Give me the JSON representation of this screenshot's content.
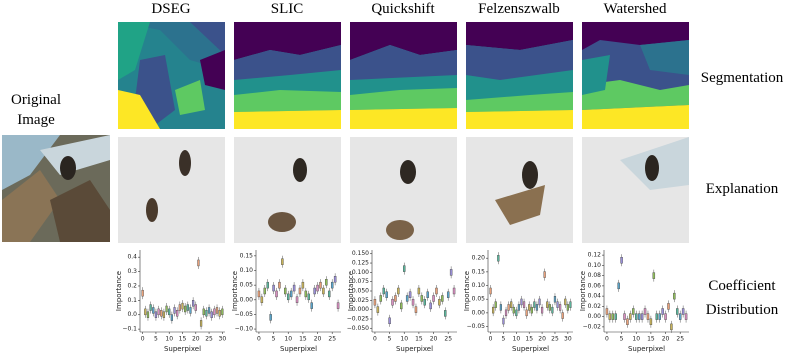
{
  "original_label": [
    "Original",
    "Image"
  ],
  "row_labels": [
    "Segmentation",
    "Explanation",
    "Coefficient",
    "Distribution"
  ],
  "chart_data": [
    {
      "type": "box",
      "title": "DSEG",
      "xlabel": "Superpixel",
      "ylabel": "Importance",
      "values": [
        0.15,
        0.02,
        0.0,
        0.05,
        0.03,
        0.0,
        0.02,
        0.01,
        0.0,
        0.04,
        0.02,
        -0.02,
        0.03,
        0.01,
        0.05,
        0.06,
        0.04,
        0.05,
        0.03,
        0.08,
        0.05,
        0.36,
        -0.06,
        0.02,
        0.01,
        0.03,
        0.0,
        0.02,
        0.03,
        0.01,
        0.02
      ],
      "xlim": [
        -1,
        31
      ],
      "xticks": [
        0,
        5,
        10,
        15,
        20,
        25,
        30
      ],
      "ylim": [
        -0.12,
        0.45
      ],
      "yticks": [
        {
          "value": -0.1,
          "label": "−0.1"
        },
        {
          "value": 0,
          "label": "0.0"
        },
        0.1,
        0.2,
        0.3,
        0.4
      ]
    },
    {
      "type": "box",
      "title": "SLIC",
      "xlabel": "Superpixel",
      "ylabel": "Importance",
      "values": [
        0.02,
        0.0,
        0.03,
        0.05,
        -0.06,
        0.04,
        0.02,
        0.05,
        0.13,
        0.03,
        0.01,
        0.02,
        0.04,
        0.0,
        0.03,
        0.05,
        0.02,
        0.01,
        -0.02,
        0.03,
        0.04,
        0.05,
        0.03,
        0.06,
        0.02,
        0.05,
        0.07,
        -0.02
      ],
      "xlim": [
        -1,
        28
      ],
      "xticks": [
        0,
        5,
        10,
        15,
        20,
        25
      ],
      "ylim": [
        -0.11,
        0.17
      ],
      "yticks": [
        {
          "value": -0.1,
          "label": "−0.10"
        },
        {
          "value": -0.05,
          "label": "−0.05"
        },
        {
          "value": 0,
          "label": "0.00"
        },
        0.05,
        {
          "value": 0.1,
          "label": "0.10"
        },
        0.15
      ]
    },
    {
      "type": "box",
      "title": "Quickshift",
      "xlabel": "Superpixel",
      "ylabel": "Importance",
      "values": [
        0.02,
        0.0,
        0.03,
        0.05,
        0.04,
        -0.03,
        0.02,
        0.03,
        0.05,
        0.01,
        0.11,
        0.03,
        0.04,
        0.02,
        0.0,
        0.05,
        0.03,
        0.02,
        0.04,
        0.01,
        0.03,
        0.05,
        0.02,
        0.03,
        -0.01,
        0.04,
        0.1,
        0.05
      ],
      "xlim": [
        -1,
        28
      ],
      "xticks": [
        0,
        5,
        10,
        15,
        20,
        25
      ],
      "ylim": [
        -0.06,
        0.16
      ],
      "yticks": [
        {
          "value": -0.05,
          "label": "−0.050"
        },
        {
          "value": -0.025,
          "label": "−0.025"
        },
        {
          "value": 0,
          "label": "0.000"
        },
        0.025,
        {
          "value": 0.05,
          "label": "0.050"
        },
        {
          "value": 0.075,
          "label": "0.075"
        },
        {
          "value": 0.1,
          "label": "0.100"
        },
        0.125,
        {
          "value": 0.15,
          "label": "0.150"
        }
      ]
    },
    {
      "type": "box",
      "title": "Felzenszwalb",
      "xlabel": "Superpixel",
      "ylabel": "Importance",
      "values": [
        0.08,
        0.01,
        0.03,
        0.2,
        0.02,
        -0.03,
        0.0,
        0.02,
        0.03,
        0.01,
        0.0,
        0.02,
        0.04,
        0.03,
        0.0,
        0.02,
        0.01,
        0.03,
        0.02,
        0.04,
        0.01,
        0.14,
        0.03,
        0.02,
        0.01,
        0.05,
        0.03,
        0.02,
        -0.01,
        0.04,
        0.02,
        0.03
      ],
      "xlim": [
        -1,
        32
      ],
      "xticks": [
        0,
        5,
        10,
        15,
        20,
        25,
        30
      ],
      "ylim": [
        -0.07,
        0.23
      ],
      "yticks": [
        {
          "value": -0.05,
          "label": "−0.05"
        },
        {
          "value": 0,
          "label": "0.00"
        },
        0.05,
        {
          "value": 0.1,
          "label": "0.10"
        },
        0.15,
        {
          "value": 0.2,
          "label": "0.20"
        }
      ]
    },
    {
      "type": "box",
      "title": "Watershed",
      "xlabel": "Superpixel",
      "ylabel": "Importance",
      "values": [
        0.01,
        0.0,
        0.0,
        0.0,
        0.06,
        0.11,
        0.0,
        -0.01,
        0.0,
        0.01,
        0.0,
        0.0,
        0.0,
        0.01,
        0.0,
        -0.01,
        0.08,
        0.0,
        0.0,
        0.01,
        0.0,
        0.02,
        -0.02,
        0.04,
        0.01,
        0.0,
        0.01,
        0.0
      ],
      "xlim": [
        -1,
        28
      ],
      "xticks": [
        0,
        5,
        10,
        15,
        20,
        25
      ],
      "ylim": [
        -0.03,
        0.13
      ],
      "yticks": [
        {
          "value": -0.02,
          "label": "−0.02"
        },
        {
          "value": 0,
          "label": "0.00"
        },
        0.02,
        0.04,
        0.06,
        0.08,
        {
          "value": 0.1,
          "label": "0.10"
        },
        0.12
      ]
    }
  ],
  "palette": [
    "#e8a07a",
    "#c8b35a",
    "#8fbc5a",
    "#5ab39a",
    "#5aa3c8",
    "#9a8fd8",
    "#d88fc0"
  ]
}
